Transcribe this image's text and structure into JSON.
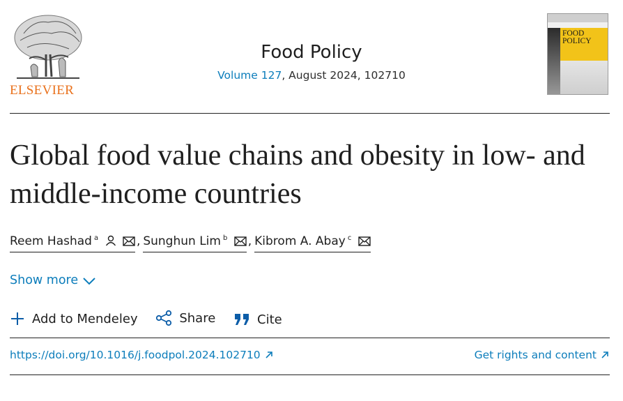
{
  "publisher": {
    "name": "ELSEVIER",
    "logo_icon": "elsevier-tree-logo-icon"
  },
  "journal": {
    "title": "Food Policy",
    "volume_link": "Volume 127",
    "issue_info": ", August 2024, 102710"
  },
  "cover": {
    "title_line1": "FOOD",
    "title_line2": "POLICY"
  },
  "article": {
    "title": "Global food value chains and obesity in low- and middle-income countries",
    "authors": [
      {
        "name": "Reem Hashad",
        "affiliation": "a"
      },
      {
        "name": "Sunghun Lim",
        "affiliation": "b"
      },
      {
        "name": "Kibrom A. Abay",
        "affiliation": "c"
      }
    ],
    "separator": ","
  },
  "show_more": {
    "label": "Show more"
  },
  "actions": {
    "mendeley": "Add to Mendeley",
    "share": "Share",
    "cite": "Cite"
  },
  "links": {
    "doi": "https://doi.org/10.1016/j.foodpol.2024.102710",
    "rights": "Get rights and content"
  },
  "colors": {
    "link": "#0c7dbb",
    "publisher_orange": "#e9711c",
    "cover_yellow": "#f2c319"
  }
}
